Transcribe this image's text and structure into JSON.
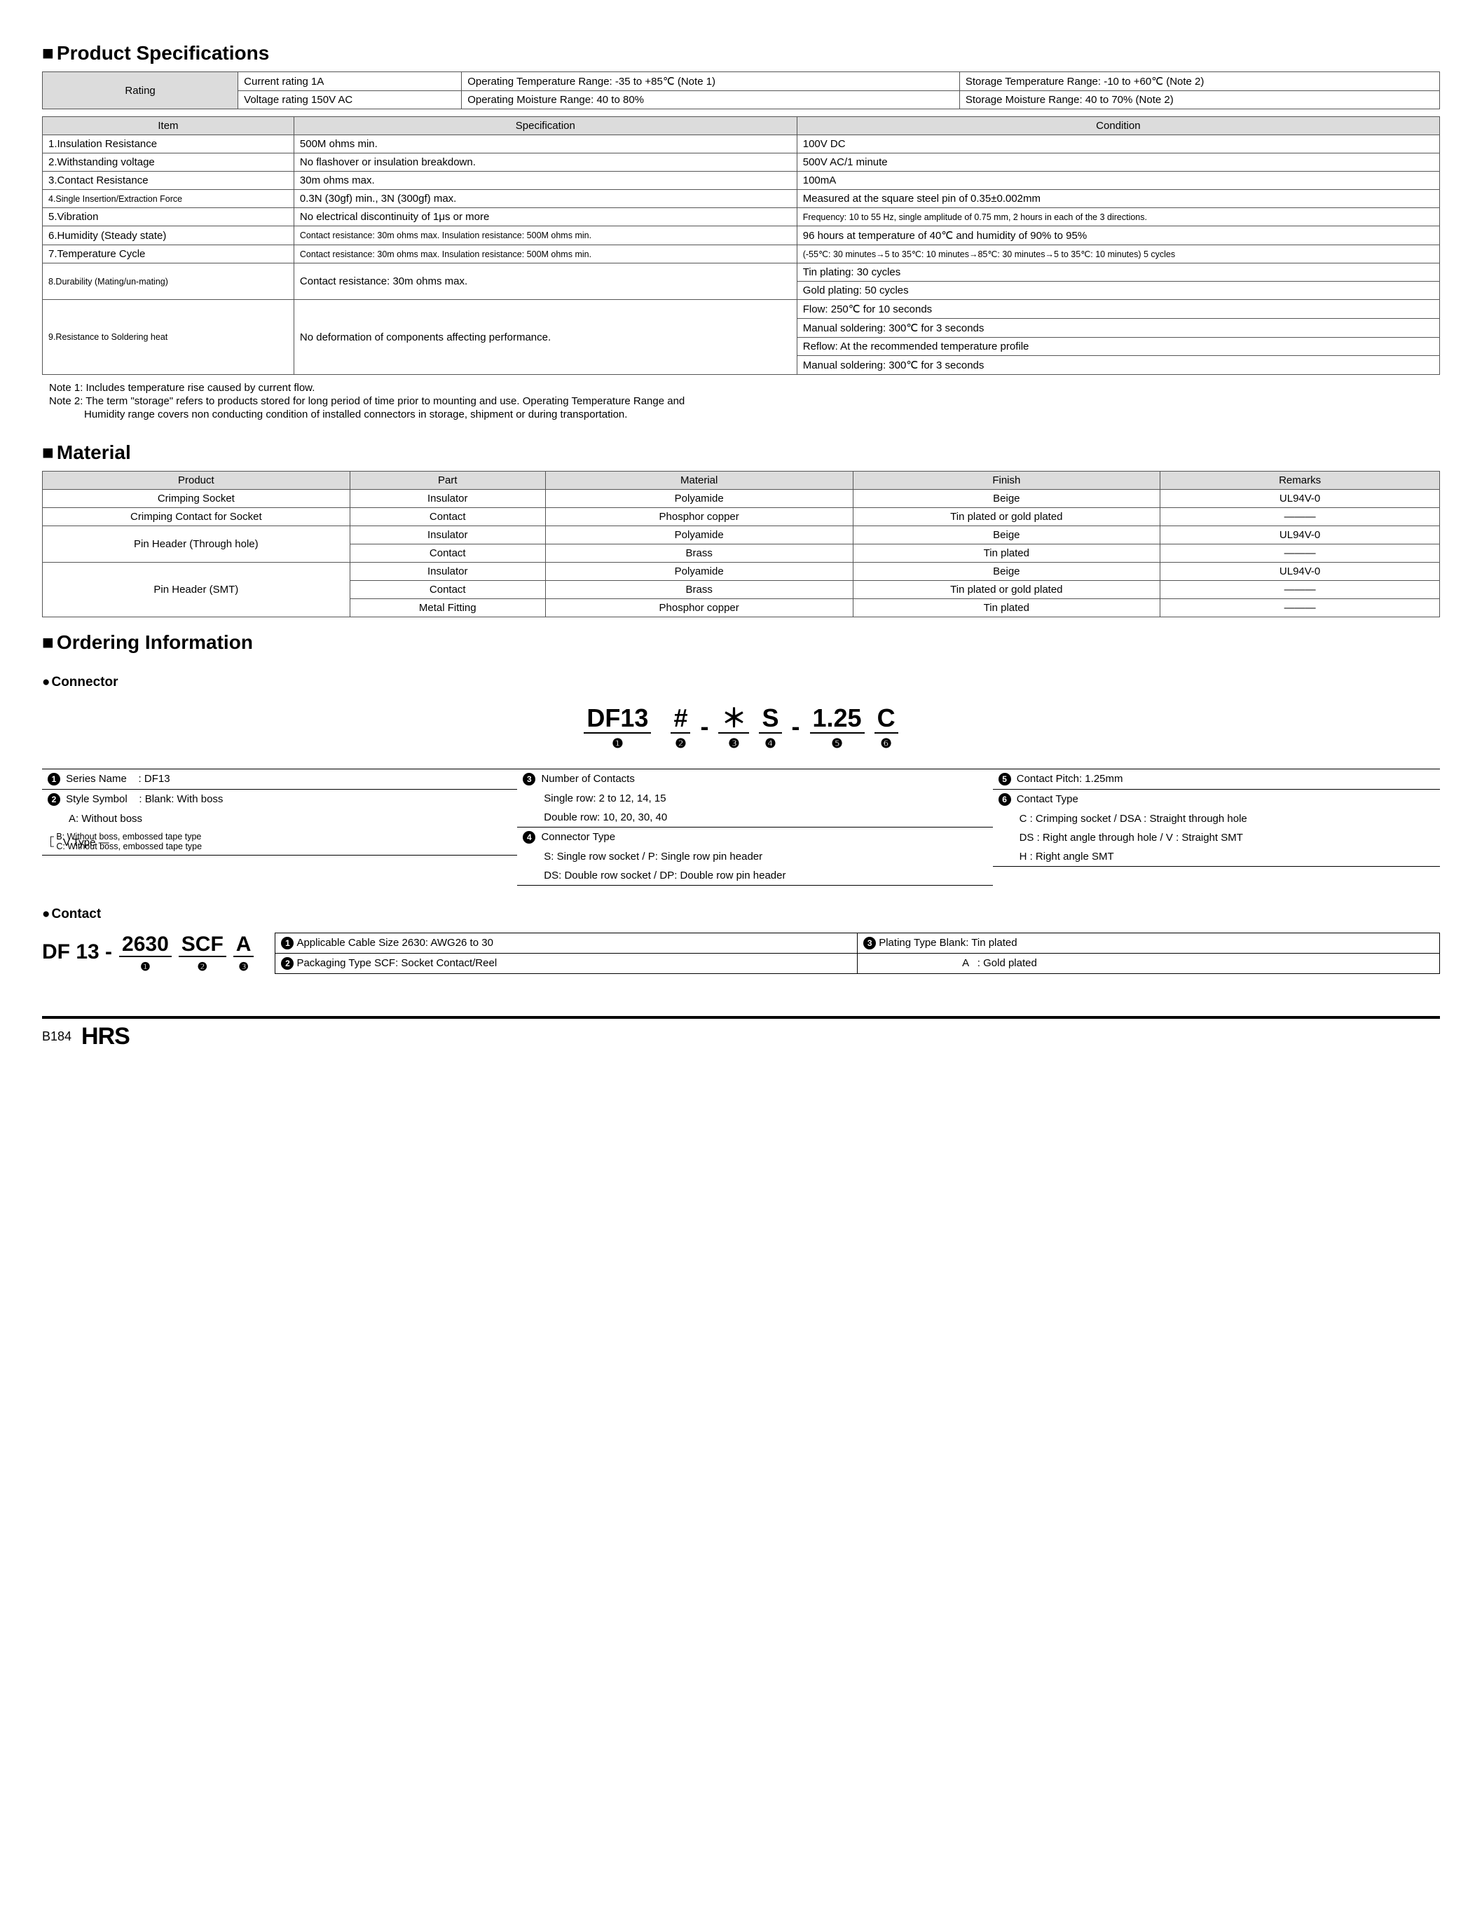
{
  "headings": {
    "spec": "Product Specifications",
    "material": "Material",
    "ordering": "Ordering Information",
    "connector": "Connector",
    "contact": "Contact"
  },
  "rating_table": {
    "header": "Rating",
    "rows": [
      [
        "Current rating  1A",
        "Operating Temperature Range: -35 to +85℃ (Note 1)",
        "Storage Temperature Range: -10 to +60℃ (Note 2)"
      ],
      [
        "Voltage rating  150V AC",
        "Operating Moisture Range: 40 to 80%",
        "Storage Moisture Range: 40 to 70%        (Note 2)"
      ]
    ]
  },
  "spec_table": {
    "headers": [
      "Item",
      "Specification",
      "Condition"
    ],
    "rows": [
      {
        "item": "1.Insulation Resistance",
        "spec": "500M ohms min.",
        "cond": "100V DC"
      },
      {
        "item": "2.Withstanding voltage",
        "spec": "No flashover or insulation breakdown.",
        "cond": "500V AC/1 minute"
      },
      {
        "item": "3.Contact Resistance",
        "spec": "30m ohms max.",
        "cond": "100mA"
      },
      {
        "item": "4.Single Insertion/Extraction Force",
        "spec": "0.3N (30gf) min., 3N (300gf) max.",
        "cond": "Measured at the square steel pin of 0.35±0.002mm",
        "small_item": true
      },
      {
        "item": "5.Vibration",
        "spec": "No electrical discontinuity of 1μs or more",
        "cond": "Frequency: 10 to 55 Hz, single amplitude of 0.75 mm, 2 hours in each of the 3 directions.",
        "small_cond": true
      },
      {
        "item": "6.Humidity (Steady state)",
        "spec": "Contact resistance: 30m ohms max. Insulation resistance: 500M ohms min.",
        "cond": "96 hours at temperature of 40℃ and humidity of 90% to 95%",
        "small_spec": true
      },
      {
        "item": "7.Temperature Cycle",
        "spec": "Contact resistance: 30m ohms max. Insulation resistance: 500M ohms min.",
        "cond": "(-55℃: 30 minutes→5 to 35℃: 10 minutes→85℃: 30 minutes→5 to 35℃: 10 minutes) 5 cycles",
        "small_spec": true,
        "small_cond": true
      },
      {
        "item": "8.Durability (Mating/un-mating)",
        "spec": "Contact resistance: 30m ohms max.",
        "cond_multi": [
          "Tin plating: 30 cycles",
          "Gold plating: 50 cycles"
        ],
        "small_item": true
      },
      {
        "item": "9.Resistance to Soldering heat",
        "spec": "No deformation of components affecting performance.",
        "cond_multi": [
          "Flow: 250℃ for 10 seconds",
          "Manual soldering: 300℃ for 3 seconds",
          "Reflow: At the recommended temperature profile",
          "Manual soldering: 300℃ for 3 seconds"
        ],
        "small_item": true
      }
    ]
  },
  "notes": [
    "Note 1: Includes temperature rise caused by current flow.",
    "Note 2: The term \"storage\" refers to products stored for long period of time prior to mounting and use. Operating Temperature Range and",
    "            Humidity range covers non conducting condition of installed connectors in storage, shipment or during transportation."
  ],
  "material_table": {
    "headers": [
      "Product",
      "Part",
      "Material",
      "Finish",
      "Remarks"
    ],
    "rows": [
      {
        "product": "Crimping Socket",
        "part": "Insulator",
        "material": "Polyamide",
        "finish": "Beige",
        "remarks": "UL94V-0"
      },
      {
        "product": "Crimping Contact for Socket",
        "part": "Contact",
        "material": "Phosphor copper",
        "finish": "Tin plated or gold plated",
        "remarks": "———"
      },
      {
        "product": "Pin Header (Through hole)",
        "rowspan": 2,
        "part": "Insulator",
        "material": "Polyamide",
        "finish": "Beige",
        "remarks": "UL94V-0"
      },
      {
        "part": "Contact",
        "material": "Brass",
        "finish": "Tin plated",
        "remarks": "———"
      },
      {
        "product": "Pin Header (SMT)",
        "rowspan": 3,
        "part": "Insulator",
        "material": "Polyamide",
        "finish": "Beige",
        "remarks": "UL94V-0"
      },
      {
        "part": "Contact",
        "material": "Brass",
        "finish": "Tin plated or gold plated",
        "remarks": "———"
      },
      {
        "part": "Metal Fitting",
        "material": "Phosphor copper",
        "finish": "Tin plated",
        "remarks": "———"
      }
    ]
  },
  "connector_pn": {
    "segments": [
      {
        "txt": "DF13",
        "num": "❶"
      },
      {
        "txt": "#",
        "num": "❷",
        "sep_before": " "
      },
      {
        "txt": "＊",
        "num": "❸",
        "sep_before": "-"
      },
      {
        "txt": "S",
        "num": "❹"
      },
      {
        "txt": "1.25",
        "num": "❺",
        "sep_before": "-"
      },
      {
        "txt": "C",
        "num": "❻"
      }
    ]
  },
  "connector_desc": {
    "col1": [
      {
        "n": "1",
        "label": "Series Name",
        "val": ": DF13"
      },
      {
        "n": "2",
        "label": "Style Symbol",
        "val": ": Blank: With boss"
      },
      {
        "indent": "A: Without boss"
      },
      {
        "vtype_label": "V Type",
        "lines": [
          "B: Without boss, embossed tape type",
          "C: Without boss, embossed tape type"
        ],
        "bracket": true
      }
    ],
    "col2": [
      {
        "n": "3",
        "label": "Number of Contacts"
      },
      {
        "indent": "Single row: 2 to 12, 14, 15"
      },
      {
        "indent": "Double row: 10, 20, 30, 40"
      },
      {
        "n": "4",
        "label": "Connector Type"
      },
      {
        "indent": "S: Single row socket / P: Single row pin header"
      },
      {
        "indent": "DS: Double row socket / DP: Double row pin header"
      }
    ],
    "col3": [
      {
        "n": "5",
        "label": "Contact Pitch: 1.25mm"
      },
      {
        "n": "6",
        "label": "Contact Type"
      },
      {
        "indent": "C : Crimping socket / DSA : Straight through hole"
      },
      {
        "indent": "DS : Right angle through hole / V : Straight SMT"
      },
      {
        "indent": "H : Right angle SMT"
      }
    ]
  },
  "contact_pn": {
    "prefix": "DF 13 -",
    "segments": [
      {
        "txt": "2630",
        "num": "❶"
      },
      {
        "txt": "SCF",
        "num": "❷"
      },
      {
        "txt": "A",
        "num": "❸"
      }
    ]
  },
  "contact_desc": {
    "row1": [
      {
        "n": "1",
        "text": "Applicable Cable Size  2630: AWG26 to 30"
      },
      {
        "n": "3",
        "text": "Plating Type    Blank: Tin plated"
      }
    ],
    "row2": [
      {
        "n": "2",
        "text": "Packaging Type  SCF: Socket Contact/Reel"
      },
      {
        "text": "                                  A   : Gold plated"
      }
    ]
  },
  "footer": {
    "page": "B184",
    "logo": "HRS"
  }
}
